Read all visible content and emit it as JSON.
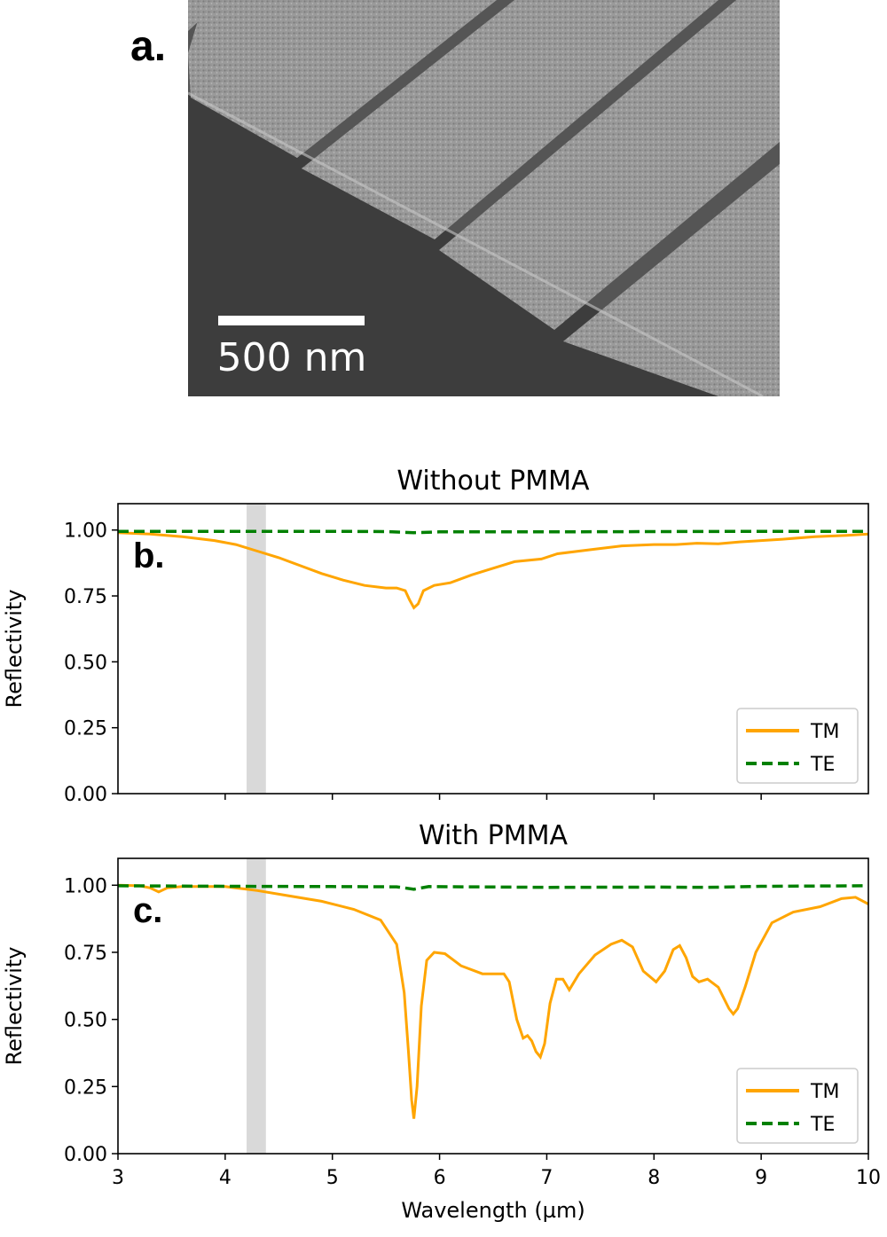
{
  "panel_a": {
    "label": "a.",
    "scale_bar_text": "500 nm"
  },
  "colors": {
    "TM": "#ffa500",
    "TE": "#008000",
    "band": "#d9d9d9"
  },
  "chart_data": [
    {
      "type": "line",
      "panel_label": "b.",
      "title": "Without PMMA",
      "xlabel": "",
      "ylabel": "Reflectivity",
      "xlim": [
        3,
        10
      ],
      "ylim": [
        0,
        1.1
      ],
      "xticks": [
        4,
        5,
        6,
        7,
        8,
        9
      ],
      "yticks": [
        "0.00",
        "0.25",
        "0.50",
        "0.75",
        "1.00"
      ],
      "shaded_band": [
        4.2,
        4.38
      ],
      "legend": {
        "position": "lower-right",
        "entries": [
          "TM",
          "TE"
        ]
      },
      "series": [
        {
          "name": "TM",
          "style": "solid",
          "x": [
            3.0,
            3.3,
            3.6,
            3.9,
            4.1,
            4.3,
            4.5,
            4.7,
            4.9,
            5.1,
            5.3,
            5.5,
            5.6,
            5.68,
            5.72,
            5.76,
            5.8,
            5.85,
            5.95,
            6.1,
            6.3,
            6.5,
            6.7,
            6.95,
            7.1,
            7.4,
            7.7,
            8.0,
            8.2,
            8.4,
            8.6,
            8.8,
            9.0,
            9.2,
            9.5,
            9.8,
            10.0
          ],
          "y": [
            0.99,
            0.985,
            0.975,
            0.96,
            0.945,
            0.92,
            0.895,
            0.865,
            0.835,
            0.81,
            0.79,
            0.78,
            0.78,
            0.77,
            0.735,
            0.705,
            0.72,
            0.77,
            0.79,
            0.8,
            0.83,
            0.855,
            0.88,
            0.89,
            0.91,
            0.925,
            0.94,
            0.945,
            0.945,
            0.95,
            0.948,
            0.955,
            0.96,
            0.965,
            0.975,
            0.98,
            0.985
          ]
        },
        {
          "name": "TE",
          "style": "dashed",
          "x": [
            3.0,
            4.0,
            5.0,
            5.5,
            5.76,
            6.0,
            7.0,
            8.0,
            9.0,
            10.0
          ],
          "y": [
            0.995,
            0.995,
            0.995,
            0.994,
            0.99,
            0.993,
            0.993,
            0.994,
            0.995,
            0.995
          ]
        }
      ]
    },
    {
      "type": "line",
      "panel_label": "c.",
      "title": "With PMMA",
      "xlabel": "Wavelength (µm)",
      "ylabel": "Reflectivity",
      "xlim": [
        3,
        10
      ],
      "ylim": [
        0,
        1.1
      ],
      "xticks": [
        3,
        4,
        5,
        6,
        7,
        8,
        9,
        10
      ],
      "yticks": [
        "0.00",
        "0.25",
        "0.50",
        "0.75",
        "1.00"
      ],
      "shaded_band": [
        4.2,
        4.38
      ],
      "legend": {
        "position": "lower-right",
        "entries": [
          "TM",
          "TE"
        ]
      },
      "series": [
        {
          "name": "TM",
          "style": "solid",
          "x": [
            3.0,
            3.2,
            3.3,
            3.38,
            3.46,
            3.6,
            4.0,
            4.3,
            4.6,
            4.9,
            5.2,
            5.45,
            5.6,
            5.67,
            5.71,
            5.74,
            5.76,
            5.79,
            5.83,
            5.88,
            5.95,
            6.05,
            6.2,
            6.4,
            6.6,
            6.65,
            6.72,
            6.78,
            6.82,
            6.86,
            6.9,
            6.94,
            6.98,
            7.03,
            7.09,
            7.15,
            7.21,
            7.3,
            7.45,
            7.6,
            7.7,
            7.8,
            7.9,
            7.96,
            8.02,
            8.1,
            8.18,
            8.24,
            8.3,
            8.36,
            8.42,
            8.5,
            8.6,
            8.7,
            8.74,
            8.78,
            8.85,
            8.95,
            9.1,
            9.3,
            9.55,
            9.75,
            9.88,
            10.0
          ],
          "y": [
            1.0,
            0.998,
            0.99,
            0.975,
            0.99,
            0.995,
            0.995,
            0.98,
            0.96,
            0.94,
            0.91,
            0.87,
            0.78,
            0.6,
            0.38,
            0.2,
            0.13,
            0.25,
            0.55,
            0.72,
            0.75,
            0.745,
            0.7,
            0.67,
            0.67,
            0.64,
            0.5,
            0.43,
            0.44,
            0.42,
            0.38,
            0.36,
            0.41,
            0.56,
            0.65,
            0.65,
            0.61,
            0.67,
            0.74,
            0.78,
            0.795,
            0.77,
            0.68,
            0.66,
            0.64,
            0.68,
            0.76,
            0.775,
            0.73,
            0.66,
            0.64,
            0.65,
            0.62,
            0.54,
            0.52,
            0.54,
            0.62,
            0.75,
            0.86,
            0.9,
            0.92,
            0.95,
            0.955,
            0.93
          ]
        },
        {
          "name": "TE",
          "style": "dashed",
          "x": [
            3.0,
            4.0,
            5.0,
            5.6,
            5.76,
            5.9,
            7.0,
            8.0,
            8.5,
            9.0,
            10.0
          ],
          "y": [
            0.998,
            0.996,
            0.995,
            0.994,
            0.985,
            0.995,
            0.992,
            0.993,
            0.992,
            0.996,
            0.998
          ]
        }
      ]
    }
  ]
}
